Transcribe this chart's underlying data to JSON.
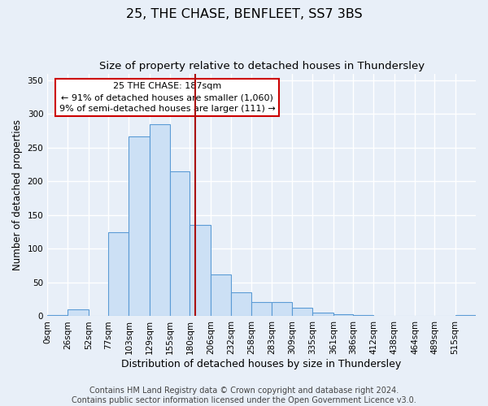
{
  "title": "25, THE CHASE, BENFLEET, SS7 3BS",
  "subtitle": "Size of property relative to detached houses in Thundersley",
  "xlabel": "Distribution of detached houses by size in Thundersley",
  "ylabel": "Number of detached properties",
  "bin_labels": [
    "0sqm",
    "26sqm",
    "52sqm",
    "77sqm",
    "103sqm",
    "129sqm",
    "155sqm",
    "180sqm",
    "206sqm",
    "232sqm",
    "258sqm",
    "283sqm",
    "309sqm",
    "335sqm",
    "361sqm",
    "386sqm",
    "412sqm",
    "438sqm",
    "464sqm",
    "489sqm",
    "515sqm"
  ],
  "bin_edges": [
    0,
    26,
    52,
    77,
    103,
    129,
    155,
    180,
    206,
    232,
    258,
    283,
    309,
    335,
    361,
    386,
    412,
    438,
    464,
    489,
    515
  ],
  "bar_heights": [
    2,
    10,
    0,
    125,
    267,
    285,
    215,
    135,
    62,
    36,
    21,
    21,
    12,
    5,
    3,
    2,
    0,
    0,
    0,
    0,
    2
  ],
  "bar_color": "#cce0f5",
  "bar_edge_color": "#5b9bd5",
  "bg_color": "#e8eff8",
  "grid_color": "#ffffff",
  "vline_x": 187,
  "vline_color": "#aa1111",
  "annotation_text_line1": "25 THE CHASE: 187sqm",
  "annotation_text_line2": "← 91% of detached houses are smaller (1,060)",
  "annotation_text_line3": "9% of semi-detached houses are larger (111) →",
  "annotation_box_color": "#ffffff",
  "annotation_box_edge": "#cc0000",
  "ylim": [
    0,
    360
  ],
  "yticks": [
    0,
    50,
    100,
    150,
    200,
    250,
    300,
    350
  ],
  "footer_line1": "Contains HM Land Registry data © Crown copyright and database right 2024.",
  "footer_line2": "Contains public sector information licensed under the Open Government Licence v3.0.",
  "title_fontsize": 11.5,
  "subtitle_fontsize": 9.5,
  "xlabel_fontsize": 9,
  "ylabel_fontsize": 8.5,
  "tick_fontsize": 7.5,
  "annot_fontsize": 8,
  "footer_fontsize": 7
}
